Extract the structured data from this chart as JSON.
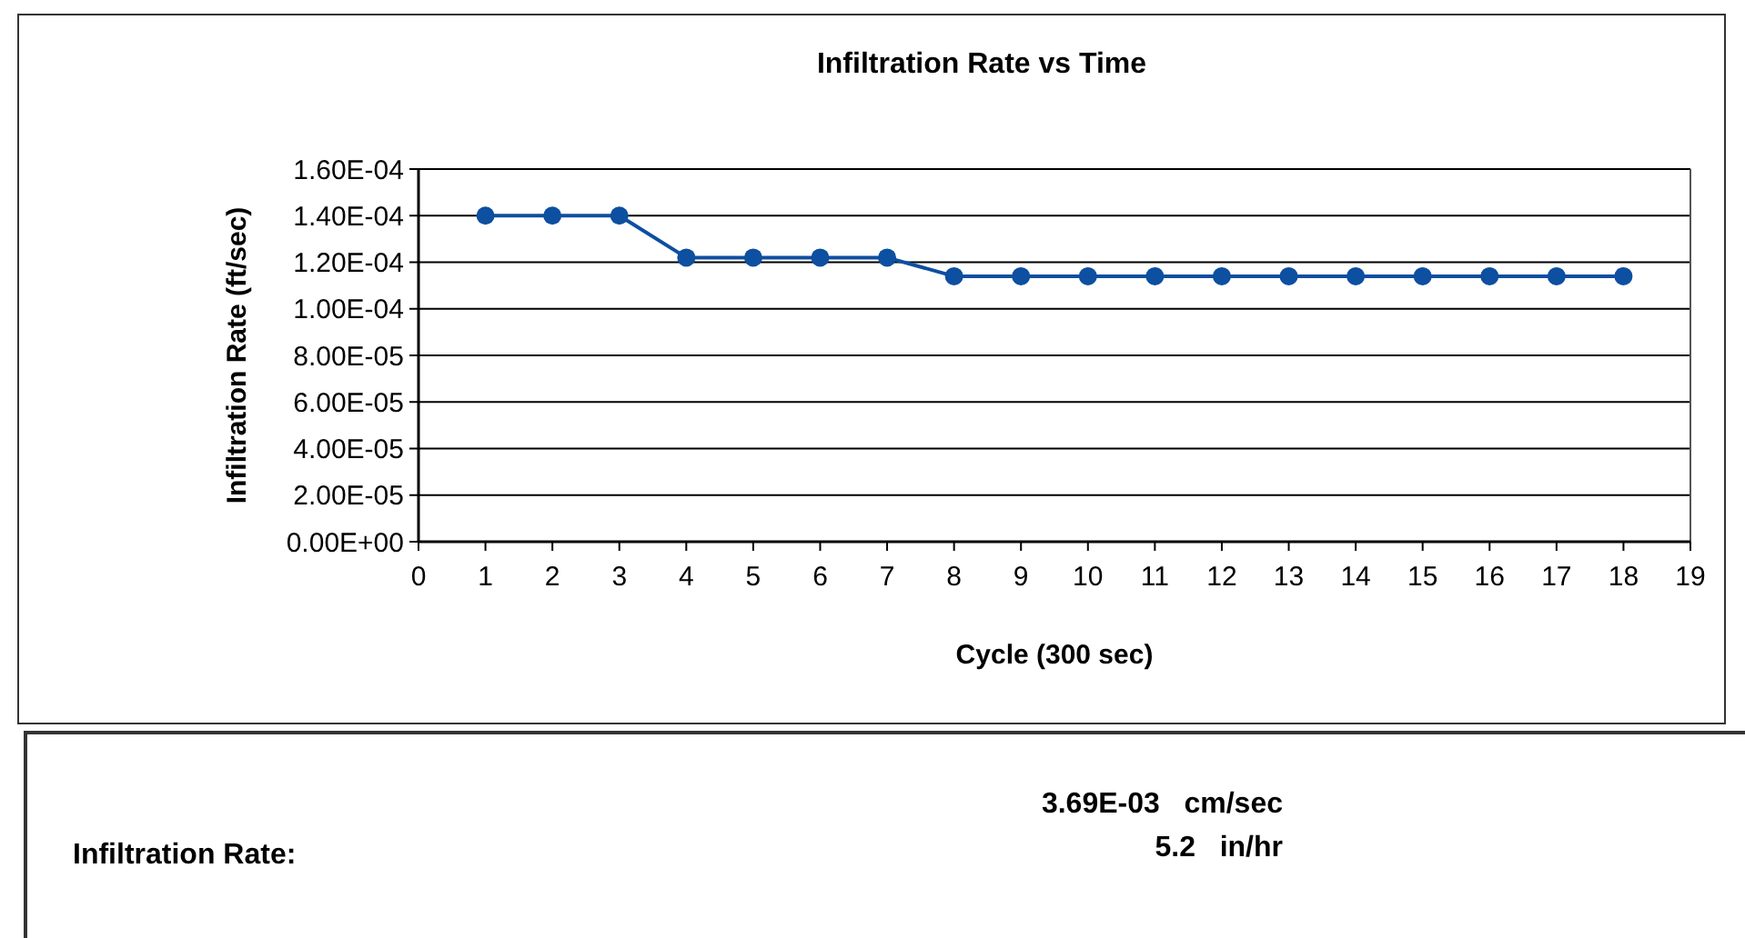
{
  "chart_data": {
    "type": "line",
    "title": "Infiltration Rate vs Time",
    "xlabel": "Cycle (300 sec)",
    "ylabel": "Infiltration Rate (ft/sec)",
    "x": [
      1,
      2,
      3,
      4,
      5,
      6,
      7,
      8,
      9,
      10,
      11,
      12,
      13,
      14,
      15,
      16,
      17,
      18
    ],
    "series": [
      {
        "color": "#0d4fa0",
        "values": [
          0.00014,
          0.00014,
          0.00014,
          0.000122,
          0.000122,
          0.000122,
          0.000122,
          0.000114,
          0.000114,
          0.000114,
          0.000114,
          0.000114,
          0.000114,
          0.000114,
          0.000114,
          0.000114,
          0.000114,
          0.000114
        ]
      }
    ],
    "xlim": [
      0,
      19
    ],
    "xticks": [
      0,
      1,
      2,
      3,
      4,
      5,
      6,
      7,
      8,
      9,
      10,
      11,
      12,
      13,
      14,
      15,
      16,
      17,
      18,
      19
    ],
    "ylim": [
      0,
      0.00016
    ],
    "yticks": [
      {
        "value": 0,
        "label": "0.00E+00"
      },
      {
        "value": 2e-05,
        "label": "2.00E-05"
      },
      {
        "value": 4e-05,
        "label": "4.00E-05"
      },
      {
        "value": 6e-05,
        "label": "6.00E-05"
      },
      {
        "value": 8e-05,
        "label": "8.00E-05"
      },
      {
        "value": 0.0001,
        "label": "1.00E-04"
      },
      {
        "value": 0.00012,
        "label": "1.20E-04"
      },
      {
        "value": 0.00014,
        "label": "1.40E-04"
      },
      {
        "value": 0.00016,
        "label": "1.60E-04"
      }
    ],
    "grid": "y",
    "marker": "circle",
    "line_style": "solid",
    "annotations": [
      "Infiltration Rate:",
      "3.69E-03   cm/sec",
      "5.2   in/hr"
    ]
  }
}
